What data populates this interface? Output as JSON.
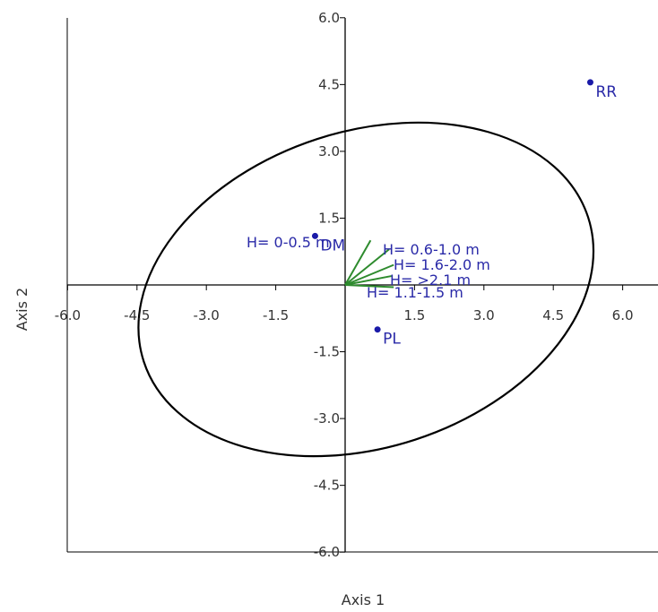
{
  "chart_data": {
    "type": "scatter",
    "title": "",
    "xlabel": "Axis 1",
    "ylabel": "Axis 2",
    "xlim": [
      -6.0,
      6.6
    ],
    "ylim": [
      -6.0,
      6.0
    ],
    "x_ticks": [
      "-6.0",
      "-4.5",
      "-3.0",
      "-1.5",
      "1.5",
      "3.0",
      "4.5",
      "6.0"
    ],
    "y_ticks": [
      "6.0",
      "4.5",
      "3.0",
      "1.5",
      "-1.5",
      "-3.0",
      "-4.5",
      "-6.0"
    ],
    "grid": false,
    "points": [
      {
        "label": "RR",
        "x": 5.3,
        "y": 4.55
      },
      {
        "label": "DM",
        "x": -0.65,
        "y": 1.1
      },
      {
        "label": "PL",
        "x": 0.7,
        "y": -1.0
      }
    ],
    "vectors": [
      {
        "label": "H= 0-0.5 m",
        "x": 0.55,
        "y": 1.0
      },
      {
        "label": "H= 0.6-1.0 m",
        "x": 0.95,
        "y": 0.8
      },
      {
        "label": "H= 1.6-2.0 m",
        "x": 1.05,
        "y": 0.45
      },
      {
        "label": "H= >2.1 m",
        "x": 1.0,
        "y": 0.2
      },
      {
        "label": "H= 1.1-1.5 m",
        "x": 1.05,
        "y": -0.05
      }
    ],
    "ellipse": {
      "cx": 0.45,
      "cy": -0.1,
      "rx": 5.05,
      "ry": 3.55,
      "angle_deg": 18
    },
    "colors": {
      "points": "#1a1aa8",
      "labels": "#2a2aa8",
      "vectors": "#2e8b2e",
      "ellipse": "#000000",
      "axes": "#000000"
    }
  }
}
